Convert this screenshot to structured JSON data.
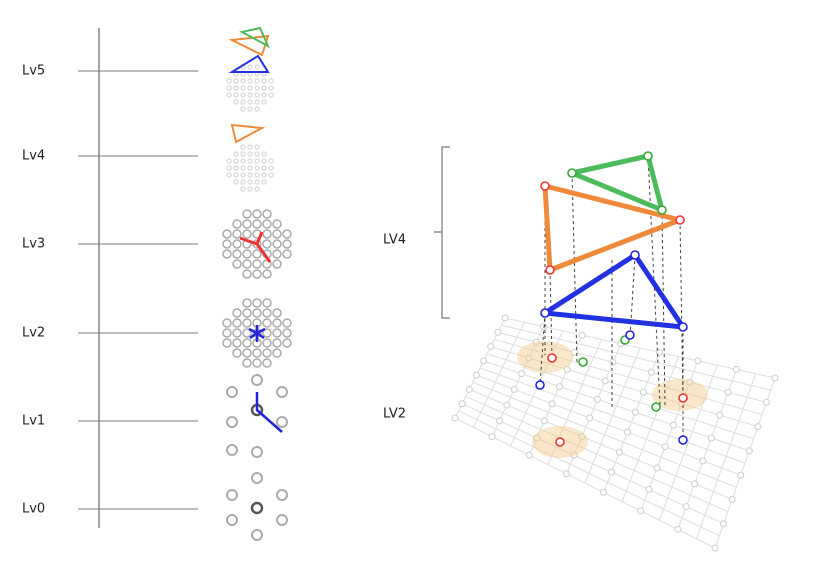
{
  "levels": [
    "Lv5",
    "Lv4",
    "Lv3",
    "Lv2",
    "Lv1",
    "Lv0"
  ],
  "detail": {
    "labels": [
      "LV4",
      "LV2"
    ]
  }
}
